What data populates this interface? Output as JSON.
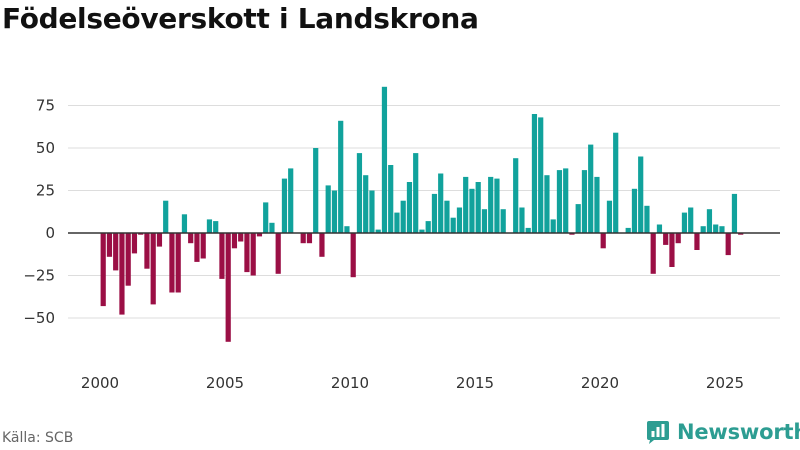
{
  "title": "Födelseöverskott i Landskrona",
  "source": "Källa: SCB",
  "brand": "Newsworthy",
  "colors": {
    "positive": "#11a29c",
    "negative": "#9b0f45",
    "grid": "#dddddd",
    "zero": "#333333"
  },
  "chart_data": {
    "type": "bar",
    "title": "Födelseöverskott i Landskrona",
    "xlabel": "",
    "ylabel": "",
    "frequency": "quarterly",
    "x_ticks": [
      2000,
      2005,
      2010,
      2015,
      2020,
      2025
    ],
    "y_ticks": [
      -50,
      -25,
      0,
      25,
      50,
      75
    ],
    "xlim": [
      1999.0,
      2027.0
    ],
    "ylim": [
      -68,
      92
    ],
    "start": [
      2000,
      1
    ],
    "values": [
      -43,
      -14,
      -22,
      -48,
      -31,
      -12,
      -1,
      -21,
      -42,
      -8,
      19,
      -35,
      -35,
      11,
      -6,
      -17,
      -15,
      8,
      7,
      -27,
      -64,
      -9,
      -5,
      -23,
      -25,
      -2,
      18,
      6,
      -24,
      32,
      38,
      0,
      -6,
      -6,
      50,
      -14,
      28,
      25,
      66,
      4,
      -26,
      47,
      34,
      25,
      2,
      86,
      40,
      12,
      19,
      30,
      47,
      2,
      7,
      23,
      35,
      19,
      9,
      15,
      33,
      26,
      30,
      14,
      33,
      32,
      14,
      0,
      44,
      15,
      3,
      70,
      68,
      34,
      8,
      37,
      38,
      -1,
      17,
      37,
      52,
      33,
      -9,
      19,
      59,
      0,
      3,
      26,
      45,
      16,
      -24,
      5,
      -7,
      -20,
      -6,
      12,
      15,
      -10,
      4,
      14,
      5,
      4,
      -13,
      23,
      -1
    ]
  }
}
